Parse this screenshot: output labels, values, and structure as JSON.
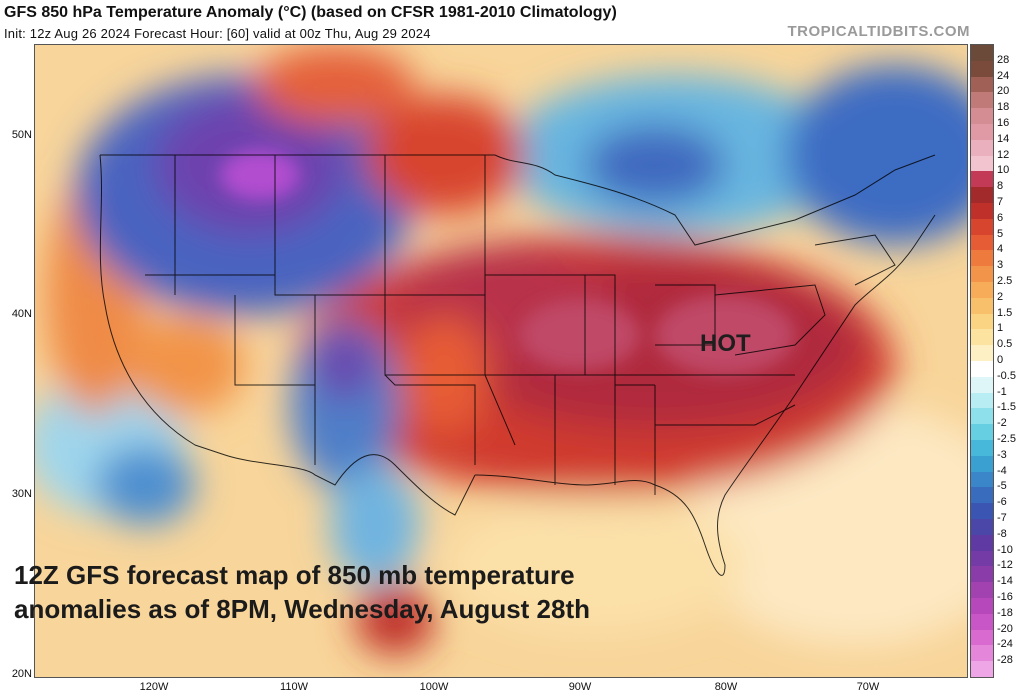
{
  "header": {
    "title": "GFS 850 hPa Temperature Anomaly (°C) (based on CFSR 1981-2010 Climatology)",
    "subtitle": "Init: 12z Aug 26 2024   Forecast Hour: [60]   valid at 00z Thu, Aug 29 2024",
    "brand": "TROPICALTIDBITS.COM"
  },
  "map": {
    "annotation_hot": "HOT",
    "caption_line1": "12Z GFS forecast map of 850 mb temperature",
    "caption_line2": "anomalies as of 8PM, Wednesday, August 28th",
    "lat_labels": [
      "50N",
      "40N",
      "30N",
      "20N"
    ],
    "lon_labels": [
      "120W",
      "110W",
      "100W",
      "90W",
      "80W",
      "70W"
    ]
  },
  "colorbar": {
    "labels": [
      "28",
      "24",
      "20",
      "18",
      "16",
      "14",
      "12",
      "10",
      "8",
      "7",
      "6",
      "5",
      "4",
      "3",
      "2.5",
      "2",
      "1.5",
      "1",
      "0.5",
      "0",
      "-0.5",
      "-1",
      "-1.5",
      "-2",
      "-2.5",
      "-3",
      "-4",
      "-5",
      "-6",
      "-7",
      "-8",
      "-10",
      "-12",
      "-14",
      "-16",
      "-18",
      "-20",
      "-24",
      "-28"
    ],
    "colors": [
      "#7a4a3a",
      "#a06055",
      "#c07a78",
      "#d48d93",
      "#e09aa6",
      "#eab0bd",
      "#f2c4cf",
      "#c23a55",
      "#a32a2a",
      "#c0302a",
      "#d8452e",
      "#e65c35",
      "#ee7a3e",
      "#f2944a",
      "#f6ac58",
      "#f8c06a",
      "#fad383",
      "#fce3a0",
      "#fdf0c4",
      "#ffffff",
      "#dff6f8",
      "#b8eef3",
      "#8ee0ea",
      "#66cfe2",
      "#48b8da",
      "#3aa0d2",
      "#3a86c8",
      "#3a6cbe",
      "#3b56b2",
      "#4a47a8",
      "#5e3aa2",
      "#743aa6",
      "#8a3ca8",
      "#a241b0",
      "#b748bb",
      "#c956c6",
      "#d86ad0",
      "#e487db",
      "#eea6e6"
    ]
  }
}
